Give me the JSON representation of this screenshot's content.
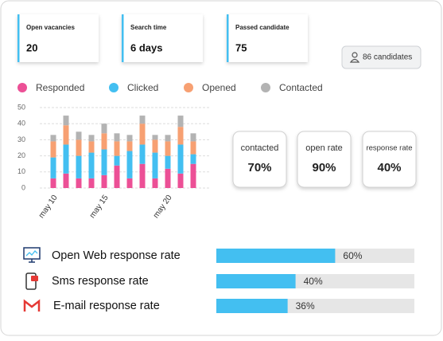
{
  "stats": [
    {
      "label": "Open vacancies",
      "value": "20"
    },
    {
      "label": "Search time",
      "value": "6 days"
    },
    {
      "label": "Passed candidate",
      "value": "75"
    }
  ],
  "candidates_button": "86 candidates",
  "chart_data": {
    "type": "bar",
    "stacked": true,
    "categories": [
      "may 10",
      null,
      null,
      null,
      "may 15",
      null,
      null,
      null,
      null,
      "may 20",
      null,
      null
    ],
    "series": [
      {
        "name": "Responded",
        "color": "#ec5096",
        "values": [
          6,
          9,
          6,
          6,
          8,
          14,
          6,
          15,
          6,
          12,
          9,
          15
        ]
      },
      {
        "name": "Clicked",
        "color": "#43bff1",
        "values": [
          13,
          18,
          14,
          16,
          16,
          6,
          17,
          12,
          16,
          8,
          18,
          6
        ]
      },
      {
        "name": "Opened",
        "color": "#f7a072",
        "values": [
          10,
          12,
          10,
          7,
          10,
          9,
          6,
          13,
          8,
          9,
          11,
          8
        ]
      },
      {
        "name": "Contacted",
        "color": "#b3b3b3",
        "values": [
          4,
          6,
          5,
          4,
          6,
          5,
          4,
          5,
          3,
          4,
          7,
          5
        ]
      }
    ],
    "ylim": [
      0,
      50
    ],
    "yticks": [
      0,
      10,
      20,
      30,
      40,
      50
    ],
    "grid": true
  },
  "rate_cards": [
    {
      "label": "contacted",
      "value": "70%"
    },
    {
      "label": "open rate",
      "value": "90%"
    },
    {
      "label": "response rate",
      "value": "40%"
    }
  ],
  "response_rates": {
    "xlim": [
      0,
      100
    ],
    "color": "#43bff1",
    "rows": [
      {
        "label": "Open Web response rate",
        "value": 60,
        "value_label": "60%"
      },
      {
        "label": "Sms response rate",
        "value": 40,
        "value_label": "40%"
      },
      {
        "label": "E-mail response rate",
        "value": 36,
        "value_label": "36%"
      }
    ]
  }
}
